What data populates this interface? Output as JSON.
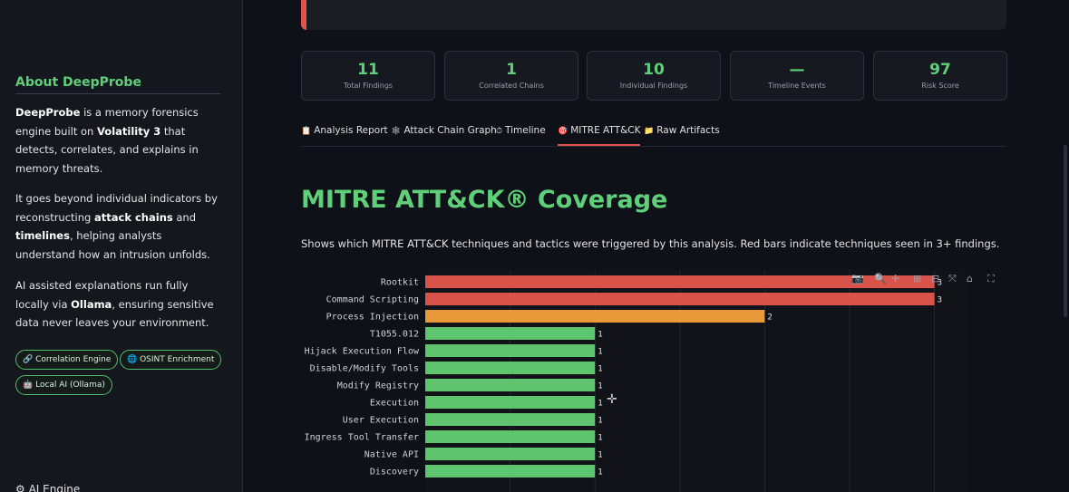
{
  "sidebar": {
    "about_title": "About DeepProbe",
    "p1": {
      "b1": "DeepProbe",
      "t1": " is a memory forensics engine built on ",
      "b2": "Volatility 3",
      "t2": " that detects, correlates, and explains in memory threats."
    },
    "p2": {
      "t1": "It goes beyond individual indicators by reconstructing ",
      "b1": "attack chains",
      "t2": " and ",
      "b2": "timelines",
      "t3": ", helping analysts understand how an intrusion unfolds."
    },
    "p3": {
      "t1": "AI assisted explanations run fully locally via ",
      "b1": "Ollama",
      "t2": ", ensuring sensitive data never leaves your environment."
    },
    "badges": [
      {
        "icon": "🔗",
        "label": "Correlation Engine"
      },
      {
        "icon": "🌐",
        "label": "OSINT Enrichment"
      },
      {
        "icon": "🤖",
        "label": "Local AI (Ollama)"
      }
    ],
    "bottom_label": "⚙ AI Engine"
  },
  "metrics": [
    {
      "value": "11",
      "label": "Total Findings"
    },
    {
      "value": "1",
      "label": "Correlated Chains"
    },
    {
      "value": "10",
      "label": "Individual Findings"
    },
    {
      "value": "—",
      "label": "Timeline Events"
    },
    {
      "value": "97",
      "label": "Risk Score"
    }
  ],
  "tabs": [
    {
      "icon": "📋",
      "label": "Analysis Report"
    },
    {
      "icon": "🕸",
      "label": "Attack Chain Graph"
    },
    {
      "icon": "⏱",
      "label": "Timeline"
    },
    {
      "icon": "🎯",
      "label": "MITRE ATT&CK"
    },
    {
      "icon": "📁",
      "label": "Raw Artifacts"
    }
  ],
  "active_tab": 3,
  "section": {
    "heading": "MITRE ATT&CK® Coverage",
    "description": "Shows which MITRE ATT&CK techniques and tactics were triggered by this analysis. Red bars indicate techniques seen in 3+ findings."
  },
  "colors": {
    "accent": "#5fcf7a",
    "red": "#d9534a",
    "orange": "#e8993a",
    "green": "#5ec46e"
  },
  "chart_data": {
    "type": "bar",
    "orientation": "horizontal",
    "categories": [
      "Rootkit",
      "Command Scripting",
      "Process Injection",
      "T1055.012",
      "Hijack Execution Flow",
      "Disable/Modify Tools",
      "Modify Registry",
      "Execution",
      "User Execution",
      "Ingress Tool Transfer",
      "Native API",
      "Discovery"
    ],
    "values": [
      3,
      3,
      2,
      1,
      1,
      1,
      1,
      1,
      1,
      1,
      1,
      1
    ],
    "xlim": [
      0,
      3.2
    ],
    "grid": true
  }
}
